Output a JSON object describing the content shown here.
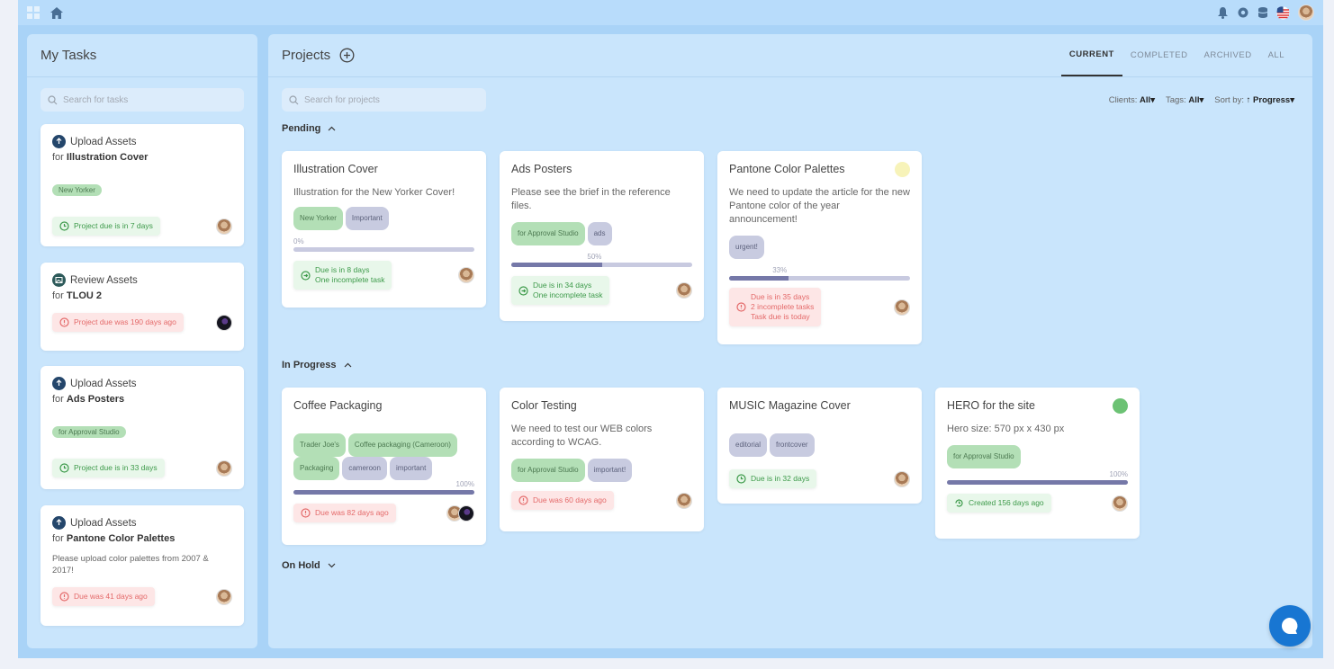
{
  "topbar": {
    "icons": [
      "apps-icon",
      "home-icon",
      "bell-icon",
      "settings-icon",
      "database-icon",
      "us-flag-icon"
    ]
  },
  "tasks": {
    "title": "My Tasks",
    "search_placeholder": "Search for tasks",
    "items": [
      {
        "action": "Upload Assets",
        "for_prefix": "for",
        "target": "Illustration Cover",
        "tag": "New Yorker",
        "desc": "",
        "status": "Project due is in 7 days",
        "status_kind": "ok"
      },
      {
        "action": "Review Assets",
        "for_prefix": "for",
        "target": "TLOU 2",
        "tag": "",
        "desc": "",
        "status": "Project due was 190 days ago",
        "status_kind": "bad"
      },
      {
        "action": "Upload Assets",
        "for_prefix": "for",
        "target": "Ads Posters",
        "tag": "for Approval Studio",
        "desc": "",
        "status": "Project due is in 33 days",
        "status_kind": "ok"
      },
      {
        "action": "Upload Assets",
        "for_prefix": "for",
        "target": "Pantone Color Palettes",
        "tag": "",
        "desc": "Please upload color palettes from 2007 & 2017!",
        "status": "Due was 41 days ago",
        "status_kind": "bad"
      }
    ]
  },
  "projects": {
    "title": "Projects",
    "search_placeholder": "Search for projects",
    "tabs": [
      "CURRENT",
      "COMPLETED",
      "ARCHIVED",
      "ALL"
    ],
    "filters": {
      "clients_label": "Clients:",
      "clients_value": "All",
      "tags_label": "Tags:",
      "tags_value": "All",
      "sort_label": "Sort by:",
      "sort_value": "Progress"
    },
    "sections": {
      "pending": "Pending",
      "in_progress": "In Progress",
      "on_hold": "On Hold"
    },
    "pending_cards": [
      {
        "title": "Illustration Cover",
        "desc": "Illustration for the New Yorker Cover!",
        "tags": [
          [
            "New Yorker",
            "green"
          ],
          [
            "Important",
            "gray"
          ]
        ],
        "progress_label": "0%",
        "progress": 0,
        "status_lines": [
          "Due is in 8 days",
          "One incomplete task"
        ],
        "status_kind": "ok"
      },
      {
        "title": "Ads Posters",
        "desc": "Please see the brief in the reference files.",
        "tags": [
          [
            "for Approval Studio",
            "green"
          ],
          [
            "ads",
            "gray"
          ]
        ],
        "progress_label": "50%",
        "progress": 0.5,
        "status_lines": [
          "Due is in 34 days",
          "One incomplete task"
        ],
        "status_kind": "ok"
      },
      {
        "title": "Pantone Color Palettes",
        "desc": "We need to update the article for the new Pantone color of the year announcement!",
        "tags": [
          [
            "urgent!",
            "gray"
          ]
        ],
        "progress_label": "33%",
        "progress": 0.33,
        "status_lines": [
          "Due is in 35 days",
          "2 incomplete tasks",
          "Task due is today"
        ],
        "status_kind": "bad",
        "dot_color": "#f7f3b9"
      }
    ],
    "progress_cards": [
      {
        "title": "Coffee Packaging",
        "desc": "",
        "tags": [
          [
            "Trader Joe's",
            "green"
          ],
          [
            "Coffee packaging (Cameroon)",
            "green"
          ],
          [
            "Packaging",
            "green"
          ],
          [
            "cameroon",
            "gray"
          ],
          [
            "important",
            "gray"
          ]
        ],
        "progress_label": "100%",
        "progress": 1,
        "status_lines": [
          "Due was 82 days ago"
        ],
        "status_kind": "bad"
      },
      {
        "title": "Color Testing",
        "desc": "We need to test our WEB colors according to WCAG.",
        "tags": [
          [
            "for Approval Studio",
            "green"
          ],
          [
            "important!",
            "gray"
          ]
        ],
        "status_lines": [
          "Due was 60 days ago"
        ],
        "status_kind": "bad"
      },
      {
        "title": "MUSIC Magazine Cover",
        "desc": "",
        "tags": [
          [
            "editorial",
            "gray"
          ],
          [
            "frontcover",
            "gray"
          ]
        ],
        "status_lines": [
          "Due is in 32 days"
        ],
        "status_kind": "ok"
      },
      {
        "title": "HERO for the site",
        "desc": "Hero size: 570 px x 430 px",
        "tags": [
          [
            "for Approval Studio",
            "green"
          ]
        ],
        "progress_label": "100%",
        "progress": 1,
        "status_lines": [
          "Created 156 days ago"
        ],
        "status_kind": "ok",
        "dot_color": "#6cc274"
      }
    ]
  }
}
